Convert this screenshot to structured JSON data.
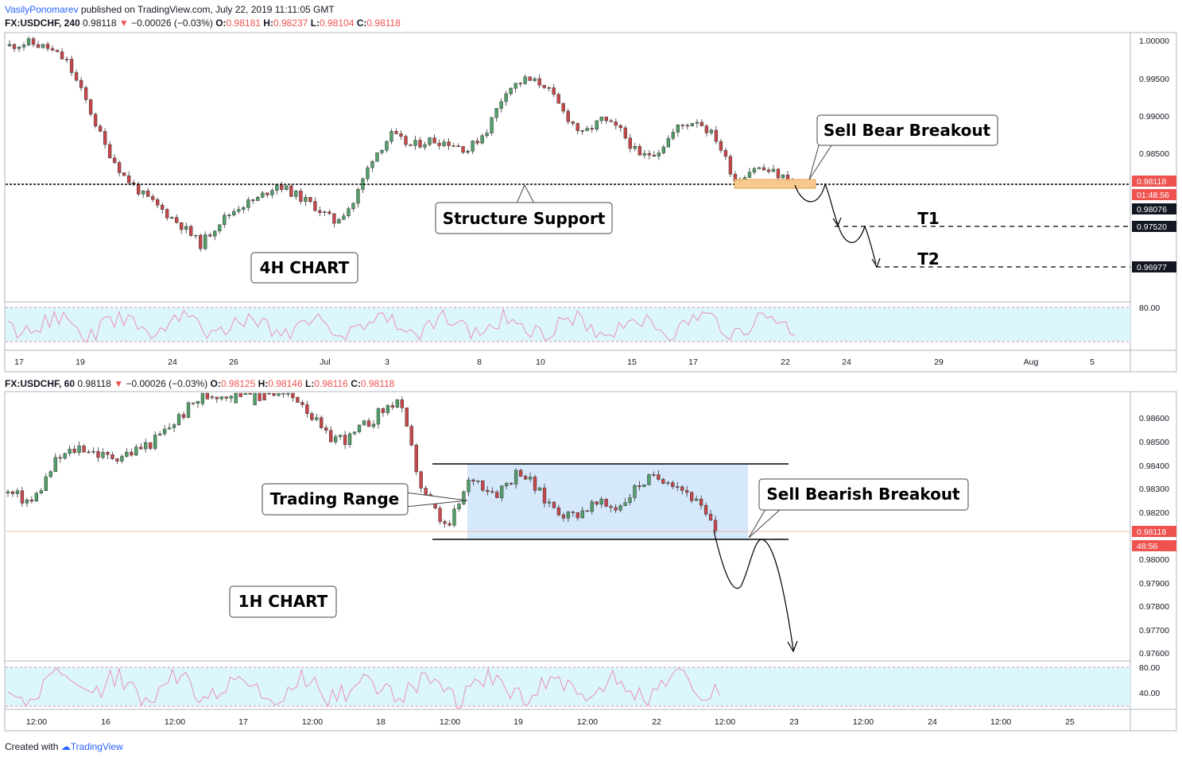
{
  "header": {
    "author": "VasilyPonomarev",
    "published": "published on TradingView.com, July 22, 2019 11:11:05 GMT"
  },
  "top_chart": {
    "symbol": "FX:USDCHF, 240",
    "price": "0.98118",
    "change": "−0.00026 (−0.03%)",
    "o": "0.98181",
    "h": "0.98237",
    "l": "0.98104",
    "c": "0.98118",
    "label": "4H CHART",
    "y_ticks": [
      "1.00000",
      "0.99500",
      "0.99000",
      "0.98500",
      "0.97520",
      "0.96977"
    ],
    "price_badges": {
      "last": "0.98118",
      "countdown": "01:48:56",
      "support": "0.98076",
      "t1": "0.97520",
      "t2": "0.96977"
    },
    "rsi_tick": "80.00",
    "x_ticks": [
      "17",
      "19",
      "24",
      "26",
      "Jul",
      "3",
      "8",
      "10",
      "15",
      "17",
      "22",
      "24",
      "29",
      "Aug",
      "5"
    ],
    "annotations": {
      "breakout": "Sell Bear Breakout",
      "support": "Structure Support",
      "t1": "T1",
      "t2": "T2"
    }
  },
  "bottom_chart": {
    "symbol": "FX:USDCHF, 60",
    "price": "0.98118",
    "change": "−0.00026 (−0.03%)",
    "o": "0.98125",
    "h": "0.98146",
    "l": "0.98116",
    "c": "0.98118",
    "label": "1H CHART",
    "y_ticks": [
      "0.98600",
      "0.98500",
      "0.98400",
      "0.98300",
      "0.98200",
      "0.98000",
      "0.97900",
      "0.97800",
      "0.97700",
      "0.97600"
    ],
    "price_badges": {
      "last": "0.98118",
      "countdown": "48:56"
    },
    "rsi_ticks": [
      "80.00",
      "40.00"
    ],
    "x_ticks": [
      "12:00",
      "16",
      "12:00",
      "17",
      "12:00",
      "18",
      "12:00",
      "19",
      "12:00",
      "22",
      "12:00",
      "23",
      "12:00",
      "24",
      "12:00",
      "25"
    ],
    "annotations": {
      "range": "Trading Range",
      "breakout": "Sell Bearish Breakout"
    }
  },
  "footer": {
    "created": "Created with",
    "brand": "TradingView"
  },
  "colors": {
    "bull": "#53a06b",
    "bear": "#c9474a",
    "rsi": "#e88fbf",
    "rsi_band": "#dcf7fa",
    "range_box": "#cfe4fb",
    "badge_dark": "#131722",
    "badge_red": "#ef5350",
    "breakout_box": "#f7c98f"
  },
  "chart_data": [
    {
      "type": "candlestick",
      "title": "FX:USDCHF, 240",
      "x_ticks": [
        "17",
        "19",
        "24",
        "26",
        "Jul",
        "3",
        "8",
        "10",
        "15",
        "17",
        "22",
        "24",
        "29",
        "Aug",
        "5"
      ],
      "ylim": [
        0.967,
        1.0005
      ],
      "close_path": [
        0.9993,
        0.9997,
        0.999,
        0.9972,
        0.992,
        0.986,
        0.982,
        0.9795,
        0.9775,
        0.9755,
        0.973,
        0.976,
        0.978,
        0.979,
        0.981,
        0.9795,
        0.978,
        0.976,
        0.9785,
        0.9845,
        0.9875,
        0.986,
        0.9868,
        0.9865,
        0.9855,
        0.9882,
        0.9935,
        0.9948,
        0.9942,
        0.9905,
        0.9875,
        0.9895,
        0.988,
        0.9845,
        0.9855,
        0.9885,
        0.9895,
        0.987,
        0.9815,
        0.9832,
        0.9825,
        0.9812
      ],
      "support": 0.98076,
      "targets": {
        "T1": 0.9752,
        "T2": 0.96977
      },
      "last": 0.98118
    },
    {
      "type": "candlestick",
      "title": "FX:USDCHF, 60",
      "x_ticks": [
        "12:00",
        "16",
        "12:00",
        "17",
        "12:00",
        "18",
        "12:00",
        "19",
        "12:00",
        "22",
        "12:00",
        "23",
        "12:00",
        "24",
        "12:00",
        "25"
      ],
      "ylim": [
        0.9758,
        0.9867
      ],
      "close_path": [
        0.9828,
        0.9824,
        0.9842,
        0.9848,
        0.9843,
        0.9845,
        0.985,
        0.986,
        0.987,
        0.987,
        0.9875,
        0.987,
        0.9868,
        0.9852,
        0.9851,
        0.986,
        0.9868,
        0.9828,
        0.9812,
        0.9835,
        0.9828,
        0.9838,
        0.9825,
        0.9818,
        0.9823,
        0.9822,
        0.9833,
        0.9835,
        0.9827,
        0.9812
      ],
      "range_high": 0.98408,
      "range_low": 0.9808,
      "last": 0.98118
    }
  ]
}
